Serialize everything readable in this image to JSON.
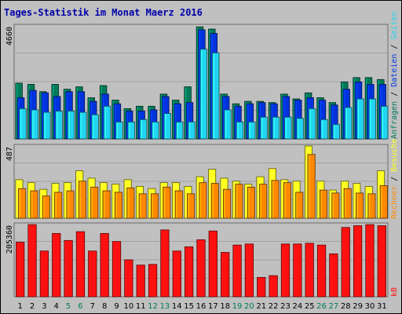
{
  "colors": {
    "background": "#c0c0c0",
    "title": "#0000aa",
    "grid": "#999999",
    "anfragen": "#007a5a",
    "dateien": "#0033dd",
    "seiten": "#22d4f0",
    "besuche": "#ffff22",
    "rechner": "#ff8800",
    "kb": "#ff1010",
    "day_weekday": "#000000",
    "day_weekend": "#007a5a"
  },
  "chart_data": [
    {
      "type": "bar",
      "title": "Tages-Statistik im Monat Maerz 2016",
      "panel": "requests",
      "ymax": 4660,
      "tick_label": "4660",
      "legend": [
        "Anfragen",
        "Dateien",
        "Seiten"
      ],
      "legend_separator": "/",
      "categories": [
        "1",
        "2",
        "3",
        "4",
        "5",
        "6",
        "7",
        "8",
        "9",
        "10",
        "11",
        "12",
        "13",
        "14",
        "15",
        "16",
        "17",
        "18",
        "19",
        "20",
        "21",
        "22",
        "23",
        "24",
        "25",
        "26",
        "27",
        "28",
        "29",
        "30",
        "31"
      ],
      "series": [
        {
          "name": "Anfragen",
          "values": [
            2300,
            2250,
            1950,
            2250,
            2050,
            2150,
            1700,
            2200,
            1600,
            1250,
            1350,
            1350,
            1850,
            1600,
            2150,
            4620,
            4530,
            1850,
            1450,
            1550,
            1550,
            1500,
            1850,
            1650,
            1900,
            1700,
            1500,
            2350,
            2530,
            2530,
            2450
          ]
        },
        {
          "name": "Dateien",
          "values": [
            1700,
            2000,
            1900,
            1750,
            1950,
            1950,
            1550,
            1850,
            1450,
            1150,
            1150,
            1200,
            1750,
            1450,
            1500,
            4500,
            4350,
            1750,
            1350,
            1450,
            1500,
            1450,
            1750,
            1600,
            1700,
            1600,
            1400,
            2050,
            2350,
            2250,
            2250
          ]
        },
        {
          "name": "Seiten",
          "values": [
            1250,
            1200,
            1100,
            1150,
            1150,
            1100,
            1000,
            1350,
            700,
            700,
            800,
            700,
            1050,
            700,
            700,
            3700,
            3550,
            1200,
            700,
            700,
            900,
            900,
            900,
            850,
            1250,
            800,
            600,
            1300,
            1650,
            1650,
            1350
          ]
        }
      ]
    },
    {
      "type": "bar",
      "panel": "visits",
      "ymax": 487,
      "tick_label": "487",
      "legend": [
        "Rechner",
        "Besuche"
      ],
      "legend_separator": "/",
      "categories": [
        "1",
        "2",
        "3",
        "4",
        "5",
        "6",
        "7",
        "8",
        "9",
        "10",
        "11",
        "12",
        "13",
        "14",
        "15",
        "16",
        "17",
        "18",
        "19",
        "20",
        "21",
        "22",
        "23",
        "24",
        "25",
        "26",
        "27",
        "28",
        "29",
        "30",
        "31"
      ],
      "series": [
        {
          "name": "Besuche",
          "values": [
            260,
            240,
            195,
            235,
            240,
            320,
            270,
            240,
            230,
            260,
            215,
            200,
            240,
            240,
            215,
            280,
            330,
            270,
            250,
            230,
            280,
            335,
            260,
            250,
            487,
            250,
            190,
            250,
            235,
            215,
            320
          ]
        },
        {
          "name": "Rechner",
          "values": [
            200,
            185,
            150,
            175,
            185,
            250,
            210,
            185,
            175,
            205,
            165,
            165,
            210,
            185,
            165,
            240,
            235,
            195,
            230,
            210,
            230,
            255,
            240,
            175,
            430,
            190,
            170,
            200,
            170,
            165,
            220
          ]
        }
      ]
    },
    {
      "type": "bar",
      "panel": "traffic",
      "ymax": 205360,
      "tick_label": "205360",
      "legend": [
        "kB"
      ],
      "categories": [
        "1",
        "2",
        "3",
        "4",
        "5",
        "6",
        "7",
        "8",
        "9",
        "10",
        "11",
        "12",
        "13",
        "14",
        "15",
        "16",
        "17",
        "18",
        "19",
        "20",
        "21",
        "22",
        "23",
        "24",
        "25",
        "26",
        "27",
        "28",
        "29",
        "30",
        "31"
      ],
      "weekend_days": [
        "5",
        "6",
        "12",
        "13",
        "19",
        "20",
        "26",
        "27"
      ],
      "series": [
        {
          "name": "kB",
          "values": [
            155000,
            205000,
            130000,
            180000,
            160000,
            185000,
            130000,
            180000,
            157000,
            105000,
            90000,
            92000,
            190000,
            130000,
            142000,
            162000,
            187000,
            126000,
            147000,
            150000,
            55000,
            60000,
            150000,
            150000,
            152000,
            147000,
            122000,
            197000,
            202000,
            205000,
            202000
          ]
        }
      ]
    }
  ]
}
